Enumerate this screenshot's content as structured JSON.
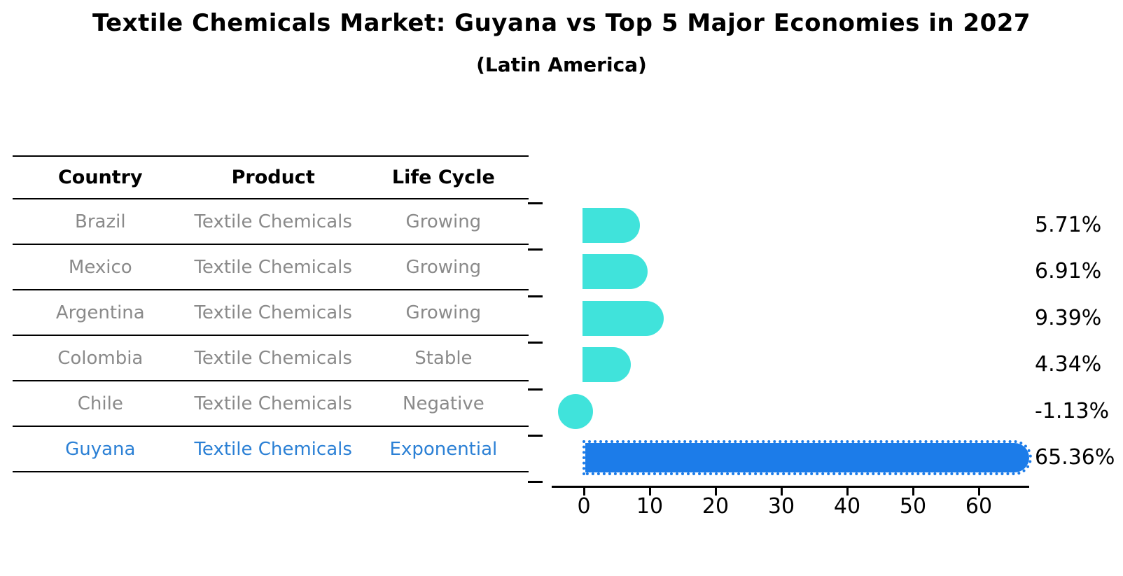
{
  "title": "Textile Chemicals Market: Guyana vs Top 5 Major Economies in 2027",
  "subtitle": "(Latin America)",
  "table": {
    "headers": [
      "Country",
      "Product",
      "Life Cycle"
    ],
    "rows": [
      {
        "country": "Brazil",
        "product": "Textile Chemicals",
        "life_cycle": "Growing",
        "highlight": false
      },
      {
        "country": "Mexico",
        "product": "Textile Chemicals",
        "life_cycle": "Growing",
        "highlight": false
      },
      {
        "country": "Argentina",
        "product": "Textile Chemicals",
        "life_cycle": "Growing",
        "highlight": false
      },
      {
        "country": "Colombia",
        "product": "Textile Chemicals",
        "life_cycle": "Stable",
        "highlight": false
      },
      {
        "country": "Chile",
        "product": "Textile Chemicals",
        "life_cycle": "Negative",
        "highlight": false
      },
      {
        "country": "Guyana",
        "product": "Textile Chemicals",
        "life_cycle": "Exponential",
        "highlight": true
      }
    ]
  },
  "chart_data": {
    "type": "bar",
    "orientation": "horizontal",
    "title": "Textile Chemicals Market: Guyana vs Top 5 Major Economies in 2027 (Latin America)",
    "categories": [
      "Brazil",
      "Mexico",
      "Argentina",
      "Colombia",
      "Chile",
      "Guyana"
    ],
    "values": [
      5.71,
      6.91,
      9.39,
      4.34,
      -1.13,
      65.36
    ],
    "value_labels": [
      "5.71%",
      "6.91%",
      "9.39%",
      "4.34%",
      "-1.13%",
      "65.36%"
    ],
    "x_ticks": [
      0,
      10,
      20,
      30,
      40,
      50,
      60
    ],
    "xlim": [
      -5,
      68
    ],
    "grid": false,
    "legend": "none",
    "highlight_index": 5,
    "colors": {
      "bar_default": "#40e3db",
      "bar_highlight": "#1c7ce9",
      "highlight_text": "#2b80d5",
      "table_text": "#8a8a8a",
      "axis_and_lines": "#000000"
    }
  }
}
